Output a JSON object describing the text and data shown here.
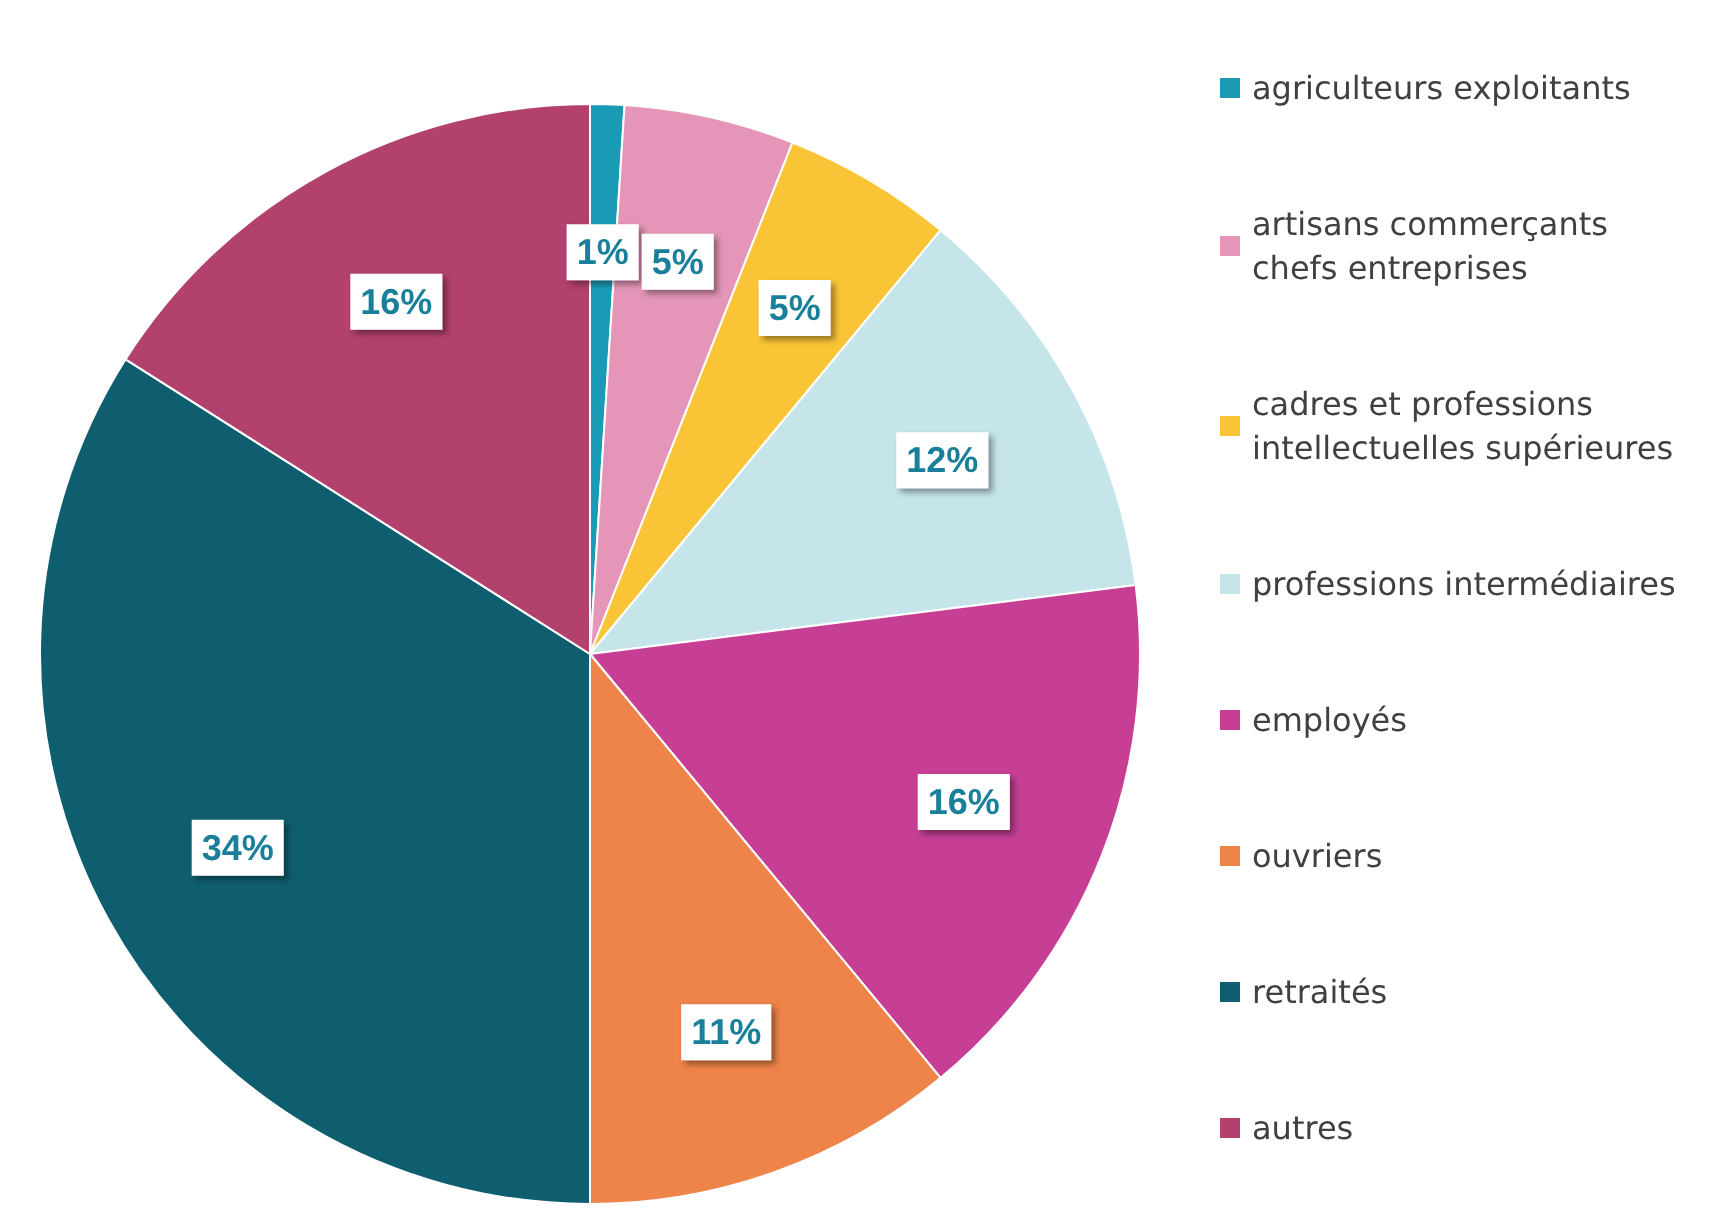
{
  "chart_data": {
    "type": "pie",
    "categories": [
      "agriculteurs exploitants",
      "artisans commerçants\nchefs entreprises",
      "cadres et professions\nintellectuelles supérieures",
      "professions intermédiaires",
      "employés",
      "ouvriers",
      "retraités",
      "autres"
    ],
    "values": [
      1,
      5,
      5,
      12,
      16,
      11,
      34,
      16
    ],
    "colors": [
      "#1a9bb5",
      "#e596b8",
      "#f9c536",
      "#c5e5ea",
      "#c63f95",
      "#ee844a",
      "#0e5e70",
      "#b2416e"
    ],
    "value_labels": [
      "1%",
      "5%",
      "5%",
      "12%",
      "16%",
      "11%",
      "34%",
      "16%"
    ],
    "legend": "right"
  }
}
